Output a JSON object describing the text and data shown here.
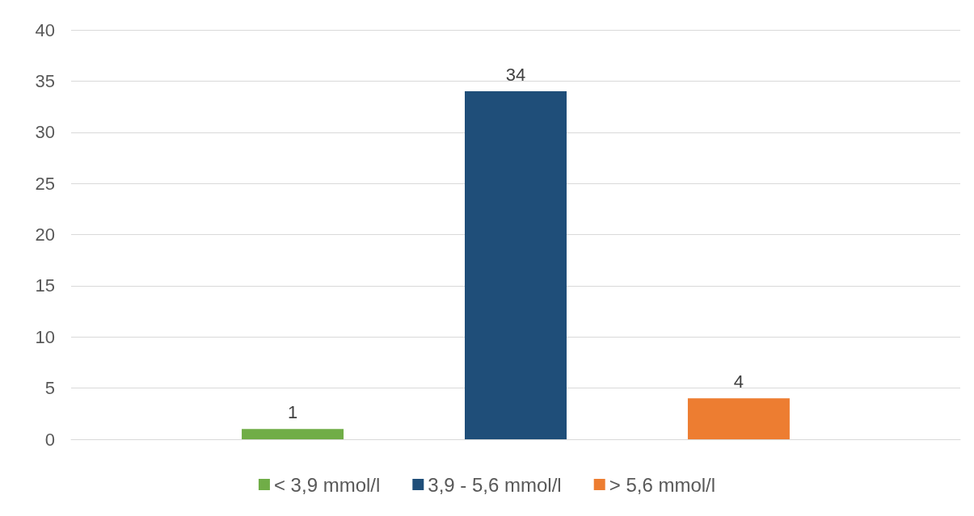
{
  "chart_data": {
    "type": "bar",
    "categories": [
      null
    ],
    "series": [
      {
        "name": "< 3,9 mmol/l",
        "color": "#70ad47",
        "values": [
          1
        ]
      },
      {
        "name": "3,9 - 5,6 mmol/l",
        "color": "#1f4e79",
        "values": [
          34
        ]
      },
      {
        "name": "> 5,6 mmol/l",
        "color": "#ed7d31",
        "values": [
          4
        ]
      }
    ],
    "ylim": [
      0,
      40
    ],
    "yticks": [
      0,
      5,
      10,
      15,
      20,
      25,
      30,
      35,
      40
    ],
    "grid": "y",
    "legend": "bottom",
    "data_labels": true
  }
}
